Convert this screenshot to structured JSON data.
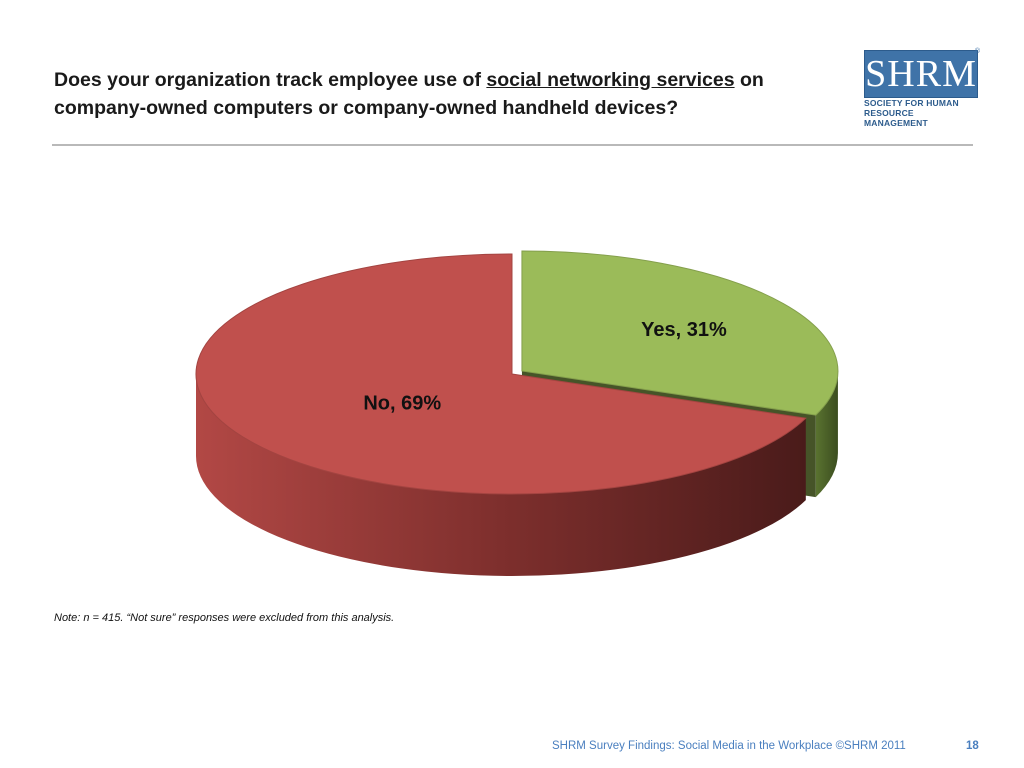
{
  "slide": {
    "title_part1": "Does your organization track employee use of ",
    "title_link": "social networking services",
    "title_part2": " on company-owned computers or company-owned handheld devices?",
    "note": "Note:  n = 415. “Not sure” responses were excluded from this analysis.",
    "footer": "SHRM Survey Findings: Social Media in the Workplace ©SHRM 2011",
    "page_number": "18"
  },
  "logo": {
    "wordmark": "SHRM",
    "registered": "®",
    "line1": "SOCIETY FOR HUMAN",
    "line2": "RESOURCE MANAGEMENT"
  },
  "chart_data": {
    "type": "pie",
    "style": "3d-exploded",
    "categories": [
      "Yes",
      "No"
    ],
    "values": [
      31,
      69
    ],
    "labels": [
      "Yes, 31%",
      "No, 69%"
    ],
    "colors": [
      "#9bbb59",
      "#c0504d"
    ],
    "title": ""
  }
}
